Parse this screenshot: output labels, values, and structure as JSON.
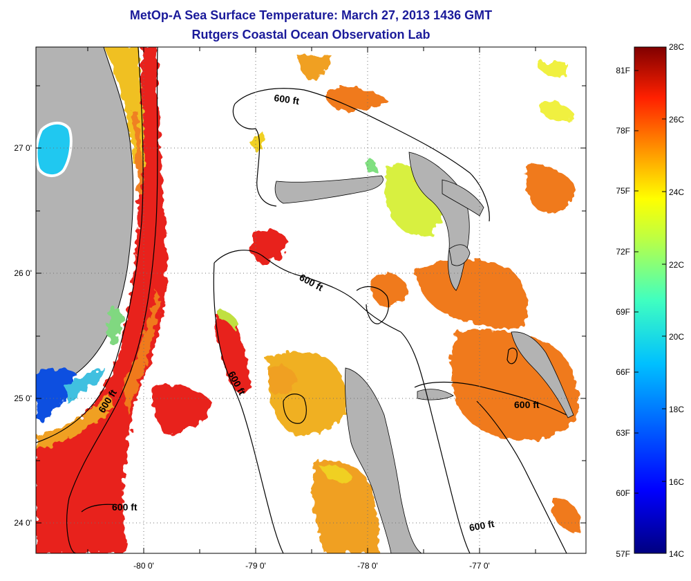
{
  "title_line1": "MetOp-A Sea Surface Temperature:  March 27, 2013 1436 GMT",
  "title_line2": "Rutgers Coastal Ocean Observation Lab",
  "x_ticks": [
    "-80 0'",
    "-79 0'",
    "-78 0'",
    "-77 0'"
  ],
  "y_ticks": [
    "27 0'",
    "26 0'",
    "25 0'",
    "24 0'"
  ],
  "contour_label": "600 ft",
  "colorbar": {
    "celsius": [
      "28C",
      "26C",
      "24C",
      "22C",
      "20C",
      "18C",
      "16C",
      "14C"
    ],
    "fahrenheit": [
      "81F",
      "78F",
      "75F",
      "72F",
      "69F",
      "66F",
      "63F",
      "60F",
      "57F"
    ],
    "range_c": [
      14,
      28
    ]
  },
  "colors": {
    "land": "#b3b3b3",
    "warm": "#e8231a",
    "orange": "#f07a1c",
    "yellow": "#e8e020",
    "cool": "#20c8e8",
    "cold": "#1040d8",
    "title": "#1a1a9a"
  }
}
